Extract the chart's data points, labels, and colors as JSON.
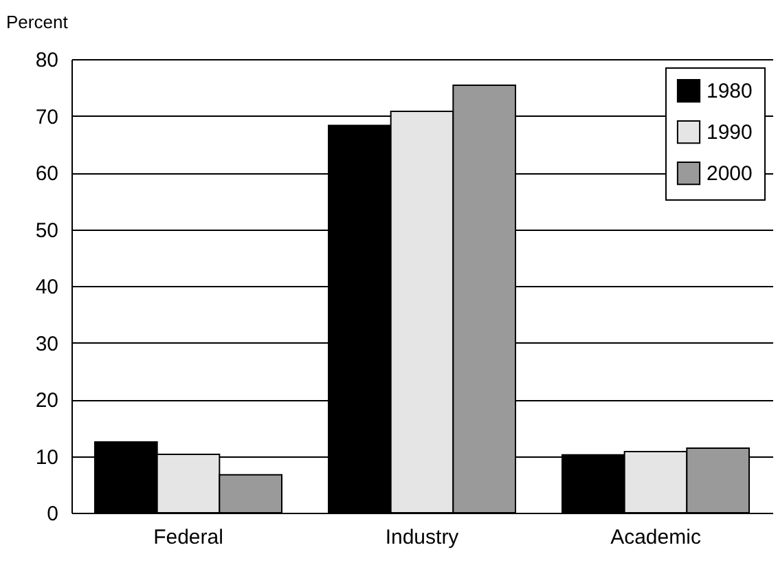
{
  "chart_data": {
    "type": "bar",
    "ylabel": "Percent",
    "categories": [
      "Federal",
      "Industry",
      "Academic"
    ],
    "series": [
      {
        "name": "1980",
        "color": "#000000",
        "values": [
          12.5,
          68.3,
          10.2
        ]
      },
      {
        "name": "1990",
        "color": "#e5e5e5",
        "values": [
          10.3,
          70.8,
          10.8
        ]
      },
      {
        "name": "2000",
        "color": "#9a9a9a",
        "values": [
          6.7,
          75.4,
          11.4
        ]
      }
    ],
    "ylim": [
      0,
      80
    ],
    "yticks": [
      0,
      10,
      20,
      30,
      40,
      50,
      60,
      70,
      80
    ],
    "grid": "y",
    "legend": "top right"
  }
}
